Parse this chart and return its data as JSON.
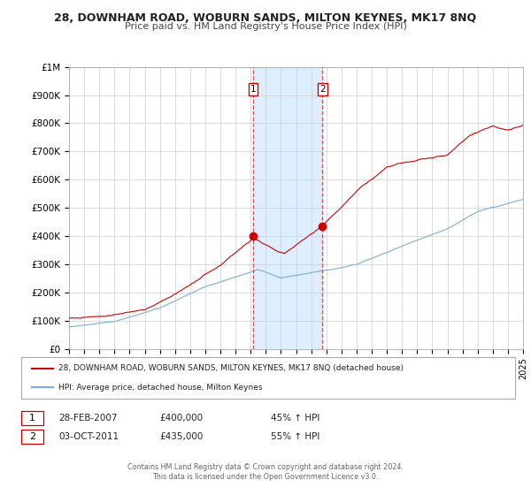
{
  "title": "28, DOWNHAM ROAD, WOBURN SANDS, MILTON KEYNES, MK17 8NQ",
  "subtitle": "Price paid vs. HM Land Registry's House Price Index (HPI)",
  "legend_entry1": "28, DOWNHAM ROAD, WOBURN SANDS, MILTON KEYNES, MK17 8NQ (detached house)",
  "legend_entry2": "HPI: Average price, detached house, Milton Keynes",
  "marker1_date": "28-FEB-2007",
  "marker1_price": "£400,000",
  "marker1_hpi": "45% ↑ HPI",
  "marker2_date": "03-OCT-2011",
  "marker2_price": "£435,000",
  "marker2_hpi": "55% ↑ HPI",
  "footer1": "Contains HM Land Registry data © Crown copyright and database right 2024.",
  "footer2": "This data is licensed under the Open Government Licence v3.0.",
  "red_color": "#cc0000",
  "blue_color": "#7aadd4",
  "shade_color": "#ddeeff",
  "grid_color": "#cccccc",
  "bg_color": "#ffffff",
  "marker1_x": 2007.1667,
  "marker1_y": 400000,
  "marker2_x": 2011.75,
  "marker2_y": 435000,
  "ylim": [
    0,
    1000000
  ],
  "xlim_start": 1995,
  "xlim_end": 2025
}
